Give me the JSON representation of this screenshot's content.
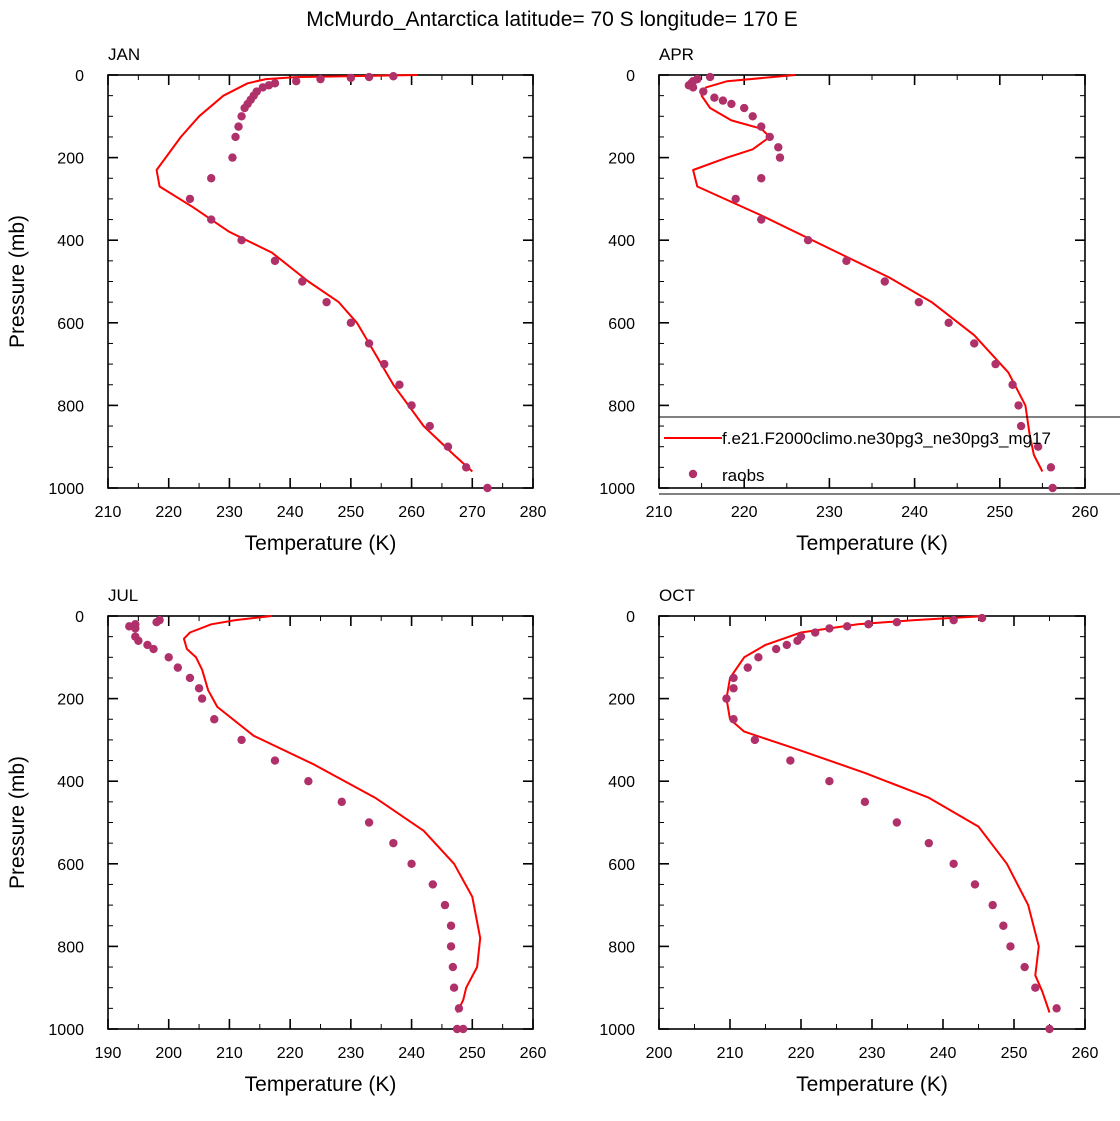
{
  "title": "McMurdo_Antarctica  latitude= 70 S longitude= 170 E",
  "colors": {
    "model": "#ff0000",
    "raobs": "#b0306a"
  },
  "legend": {
    "model_label": "f.e21.F2000climo.ne30pg3_ne30pg3_mg17",
    "obs_label": "raobs",
    "panel": "APR",
    "placement": "lower-right"
  },
  "chart_data": [
    {
      "type": "line",
      "panel": "JAN",
      "xlabel": "Temperature (K)",
      "ylabel": "Pressure (mb)",
      "xlim": [
        210,
        280
      ],
      "ylim": [
        0,
        1000
      ],
      "y_inverted": true,
      "xticks": [
        210,
        220,
        230,
        240,
        250,
        260,
        270,
        280
      ],
      "yticks": [
        0,
        200,
        400,
        600,
        800,
        1000
      ],
      "series": [
        {
          "name": "f.e21.F2000climo.ne30pg3_ne30pg3_mg17",
          "kind": "line",
          "x": [
            261,
            241,
            236,
            233,
            229,
            225,
            222,
            218,
            218.5,
            224,
            230,
            237,
            243,
            248,
            251,
            253,
            257,
            262,
            267,
            270
          ],
          "y": [
            0,
            5,
            10,
            20,
            50,
            100,
            150,
            230,
            270,
            320,
            380,
            430,
            500,
            550,
            600,
            650,
            750,
            850,
            920,
            960
          ]
        },
        {
          "name": "raobs",
          "kind": "scatter",
          "x": [
            257,
            253,
            250,
            245,
            241,
            237.5,
            236.5,
            235.5,
            234.5,
            234,
            233.5,
            233,
            232.5,
            232,
            231.5,
            231,
            230.5,
            227,
            223.5,
            227,
            232,
            237.5,
            242,
            246,
            250,
            253,
            255.5,
            258,
            260,
            263,
            266,
            269,
            272.5
          ],
          "y": [
            3,
            5,
            7,
            10,
            15,
            20,
            25,
            30,
            40,
            50,
            60,
            70,
            80,
            100,
            125,
            150,
            200,
            250,
            300,
            350,
            400,
            450,
            500,
            550,
            600,
            650,
            700,
            750,
            800,
            850,
            900,
            950,
            1000
          ]
        }
      ]
    },
    {
      "type": "line",
      "panel": "APR",
      "xlabel": "Temperature (K)",
      "ylabel": "",
      "xlim": [
        210,
        260
      ],
      "ylim": [
        0,
        1000
      ],
      "y_inverted": true,
      "xticks": [
        210,
        220,
        230,
        240,
        250,
        260
      ],
      "yticks": [
        0,
        200,
        400,
        600,
        800,
        1000
      ],
      "series": [
        {
          "name": "f.e21.F2000climo.ne30pg3_ne30pg3_mg17",
          "kind": "line",
          "x": [
            226,
            218,
            215.5,
            215,
            216,
            218.5,
            222,
            223,
            221,
            218,
            214,
            214.5,
            222,
            230,
            237,
            242,
            247,
            251,
            253,
            253.5,
            254,
            255
          ],
          "y": [
            0,
            15,
            30,
            50,
            80,
            110,
            130,
            150,
            180,
            200,
            230,
            270,
            340,
            420,
            490,
            550,
            630,
            720,
            800,
            870,
            920,
            960
          ]
        },
        {
          "name": "raobs",
          "kind": "scatter",
          "x": [
            216,
            214.5,
            214,
            213.8,
            213.5,
            214,
            215.2,
            216.5,
            217.5,
            218.5,
            220,
            221,
            222,
            223,
            224,
            224.2,
            222,
            219,
            222,
            227.5,
            232,
            236.5,
            240.5,
            244,
            247,
            249.5,
            251.5,
            252.2,
            252.5,
            254.5,
            256,
            256.2
          ],
          "y": [
            5,
            10,
            15,
            20,
            25,
            30,
            40,
            55,
            62,
            70,
            80,
            100,
            125,
            150,
            175,
            200,
            250,
            300,
            350,
            400,
            450,
            500,
            550,
            600,
            650,
            700,
            750,
            800,
            850,
            900,
            950,
            1000
          ]
        }
      ]
    },
    {
      "type": "line",
      "panel": "JUL",
      "xlabel": "Temperature (K)",
      "ylabel": "Pressure (mb)",
      "xlim": [
        190,
        260
      ],
      "ylim": [
        0,
        1000
      ],
      "y_inverted": true,
      "xticks": [
        190,
        200,
        210,
        220,
        230,
        240,
        250,
        260
      ],
      "yticks": [
        0,
        200,
        400,
        600,
        800,
        1000
      ],
      "series": [
        {
          "name": "f.e21.F2000climo.ne30pg3_ne30pg3_mg17",
          "kind": "line",
          "x": [
            217,
            211,
            207,
            203.5,
            202.5,
            203,
            204.5,
            205.5,
            206.5,
            208,
            214,
            224,
            234,
            242,
            247,
            250,
            251.3,
            250.8,
            249,
            248.5,
            247.5
          ],
          "y": [
            0,
            10,
            20,
            40,
            55,
            80,
            100,
            130,
            180,
            220,
            290,
            360,
            440,
            520,
            600,
            680,
            780,
            850,
            900,
            930,
            960
          ]
        },
        {
          "name": "raobs",
          "kind": "scatter",
          "x": [
            198.5,
            198,
            194.5,
            193.5,
            194.5,
            194.5,
            195,
            196.5,
            197.5,
            200,
            201.5,
            203.5,
            205,
            205.5,
            207.5,
            212,
            217.5,
            223,
            228.5,
            233,
            237,
            240,
            243.5,
            245.5,
            246.5,
            246.5,
            246.8,
            247,
            247.8,
            248.5,
            247.5
          ],
          "y": [
            10,
            15,
            20,
            25,
            30,
            50,
            60,
            70,
            80,
            100,
            125,
            150,
            175,
            200,
            250,
            300,
            350,
            400,
            450,
            500,
            550,
            600,
            650,
            700,
            750,
            800,
            850,
            900,
            950,
            1000,
            1000
          ]
        }
      ]
    },
    {
      "type": "line",
      "panel": "OCT",
      "xlabel": "Temperature (K)",
      "ylabel": "",
      "xlim": [
        200,
        260
      ],
      "ylim": [
        0,
        1000
      ],
      "y_inverted": true,
      "xticks": [
        200,
        210,
        220,
        230,
        240,
        250,
        260
      ],
      "yticks": [
        0,
        200,
        400,
        600,
        800,
        1000
      ],
      "series": [
        {
          "name": "f.e21.F2000climo.ne30pg3_ne30pg3_mg17",
          "kind": "line",
          "x": [
            246,
            236,
            228,
            220,
            215,
            212,
            210,
            209.5,
            210,
            212,
            219,
            229,
            238,
            245,
            249,
            252,
            253.5,
            253,
            254,
            255
          ],
          "y": [
            0,
            10,
            20,
            40,
            70,
            100,
            150,
            200,
            250,
            280,
            320,
            380,
            440,
            510,
            600,
            700,
            800,
            870,
            910,
            960
          ]
        },
        {
          "name": "raobs",
          "kind": "scatter",
          "x": [
            245.5,
            241.5,
            233.5,
            229.5,
            226.5,
            224,
            222,
            220,
            219.5,
            218,
            216.5,
            214,
            212.5,
            210.5,
            210.5,
            209.5,
            210.5,
            213.5,
            218.5,
            224,
            229,
            233.5,
            238,
            241.5,
            244.5,
            247,
            248.5,
            249.5,
            251.5,
            253,
            256,
            255
          ],
          "y": [
            5,
            10,
            15,
            20,
            25,
            30,
            40,
            50,
            60,
            70,
            80,
            100,
            125,
            150,
            175,
            200,
            250,
            300,
            350,
            400,
            450,
            500,
            550,
            600,
            650,
            700,
            750,
            800,
            850,
            900,
            950,
            1000
          ]
        }
      ]
    }
  ]
}
